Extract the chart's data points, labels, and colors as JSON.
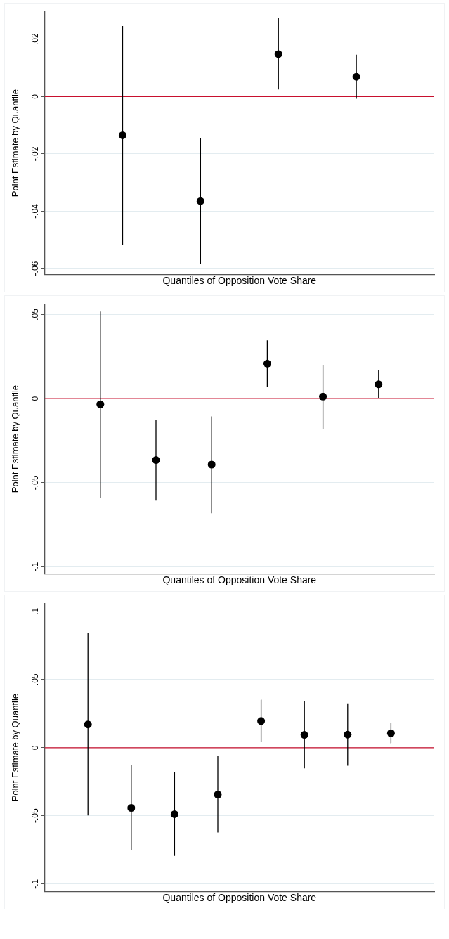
{
  "chart_data": [
    {
      "type": "scatter",
      "xlabel": "Quantiles of Opposition Vote Share",
      "ylabel": "Point Estimate by Quantile",
      "categories": [
        null,
        null,
        null,
        null
      ],
      "series": [
        {
          "color": "#000000",
          "values": [
            -0.0135,
            -0.0365,
            0.0148,
            0.0069
          ],
          "errors": [
            [
              -0.0517,
              0.0246
            ],
            [
              -0.0583,
              -0.0146
            ],
            [
              0.0025,
              0.0273
            ],
            [
              -0.0008,
              0.0146
            ]
          ]
        }
      ],
      "ylim": [
        -0.062,
        0.0295
      ],
      "yticks": [
        {
          "value": -0.06,
          "label": "-.06"
        },
        {
          "value": -0.04,
          "label": "-.04"
        },
        {
          "value": -0.02,
          "label": "-.02"
        },
        {
          "value": 0,
          "label": "0"
        },
        {
          "value": 0.02,
          "label": ".02"
        }
      ],
      "ref_lines": [
        {
          "axis": "y",
          "value": 0,
          "color": "#c8102e"
        }
      ],
      "grid": "y",
      "marker": "circle",
      "tick_labels": "y",
      "legend": false
    },
    {
      "type": "scatter",
      "xlabel": "Quantiles of Opposition Vote Share",
      "ylabel": "Point Estimate by Quantile",
      "categories": [
        null,
        null,
        null,
        null,
        null,
        null
      ],
      "series": [
        {
          "color": "#000000",
          "values": [
            -0.0034,
            -0.0365,
            -0.0392,
            0.0208,
            0.0012,
            0.0085
          ],
          "errors": [
            [
              -0.0589,
              0.0517
            ],
            [
              -0.0606,
              -0.0126
            ],
            [
              -0.0681,
              -0.0106
            ],
            [
              0.007,
              0.0346
            ],
            [
              -0.0179,
              0.0201
            ],
            [
              0.0005,
              0.0167
            ]
          ]
        }
      ],
      "ylim": [
        -0.104,
        0.056
      ],
      "yticks": [
        {
          "value": -0.1,
          "label": "-.1"
        },
        {
          "value": -0.05,
          "label": "-.05"
        },
        {
          "value": 0,
          "label": "0"
        },
        {
          "value": 0.05,
          "label": ".05"
        }
      ],
      "ref_lines": [
        {
          "axis": "y",
          "value": 0,
          "color": "#c8102e"
        }
      ],
      "grid": "y",
      "marker": "circle",
      "tick_labels": "y",
      "legend": false
    },
    {
      "type": "scatter",
      "xlabel": "Quantiles of Opposition Vote Share",
      "ylabel": "Point Estimate by Quantile",
      "categories": [
        null,
        null,
        null,
        null,
        null,
        null,
        null,
        null
      ],
      "series": [
        {
          "color": "#000000",
          "values": [
            0.0171,
            -0.0442,
            -0.0488,
            -0.0344,
            0.0196,
            0.0094,
            0.0096,
            0.0106
          ],
          "errors": [
            [
              -0.0498,
              0.084
            ],
            [
              -0.0754,
              -0.0129
            ],
            [
              -0.0794,
              -0.0177
            ],
            [
              -0.0623,
              -0.0063
            ],
            [
              0.0042,
              0.0352
            ],
            [
              -0.0152,
              0.034
            ],
            [
              -0.0133,
              0.0325
            ],
            [
              0.0033,
              0.0179
            ]
          ]
        }
      ],
      "ylim": [
        -0.1054,
        0.1056
      ],
      "yticks": [
        {
          "value": -0.1,
          "label": "-.1"
        },
        {
          "value": -0.05,
          "label": "-.05"
        },
        {
          "value": 0,
          "label": "0"
        },
        {
          "value": 0.05,
          "label": ".05"
        },
        {
          "value": 0.1,
          "label": ".1"
        }
      ],
      "ref_lines": [
        {
          "axis": "y",
          "value": 0,
          "color": "#c8102e"
        }
      ],
      "grid": "y",
      "marker": "circle",
      "tick_labels": "y",
      "legend": false
    }
  ]
}
